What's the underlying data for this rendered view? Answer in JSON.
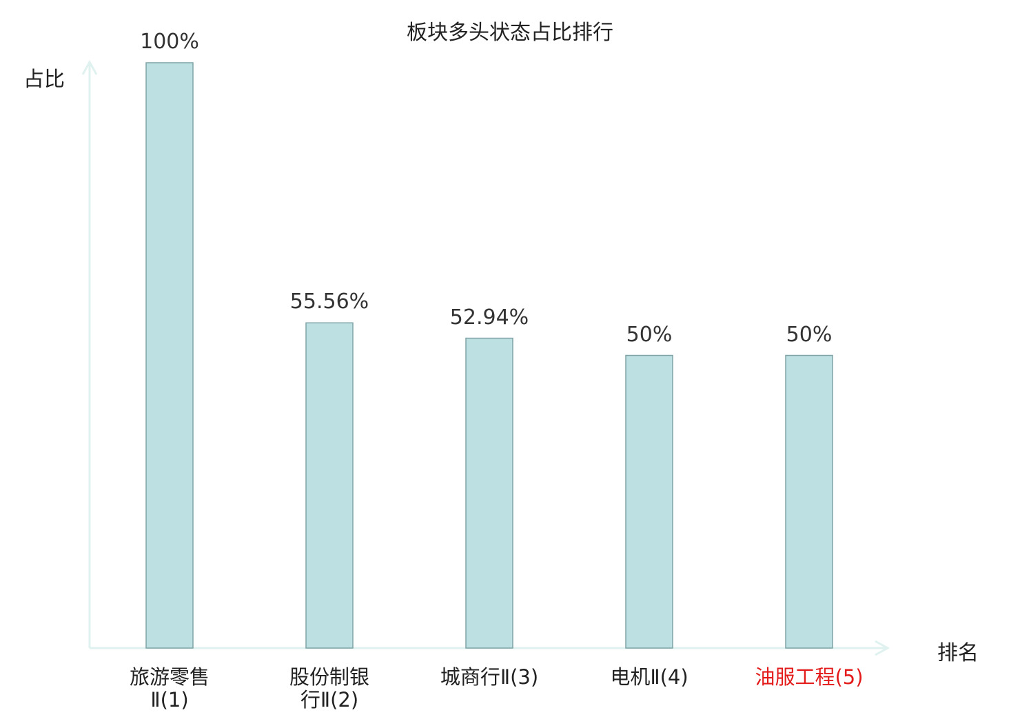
{
  "chart_data": {
    "type": "bar",
    "title": "板块多头状态占比排行",
    "xlabel": "排名",
    "ylabel": "占比",
    "categories": [
      {
        "name": "旅游零售Ⅱ",
        "rank": "(1)",
        "lines": [
          "旅游零售",
          "Ⅱ(1)"
        ],
        "highlight": false
      },
      {
        "name": "股份制银行Ⅱ",
        "rank": "(2)",
        "lines": [
          "股份制银",
          "行Ⅱ(2)"
        ],
        "highlight": false
      },
      {
        "name": "城商行Ⅱ",
        "rank": "(3)",
        "lines": [
          "城商行Ⅱ(3)"
        ],
        "highlight": false
      },
      {
        "name": "电机Ⅱ",
        "rank": "(4)",
        "lines": [
          "电机Ⅱ(4)"
        ],
        "highlight": false
      },
      {
        "name": "油服工程",
        "rank": "(5)",
        "lines": [
          "油服工程(5)"
        ],
        "highlight": true
      }
    ],
    "values": [
      100,
      55.56,
      52.94,
      50,
      50
    ],
    "value_labels": [
      "100%",
      "55.56%",
      "52.94%",
      "50%",
      "50%"
    ],
    "ylim": [
      0,
      100
    ],
    "grid": false,
    "legend": "none",
    "colors": {
      "bar_fill": "#bde0e2",
      "bar_stroke": "#7fa3a6",
      "axis": "#dff2ef",
      "highlight_label": "#e31b1b",
      "label": "#222222"
    }
  }
}
